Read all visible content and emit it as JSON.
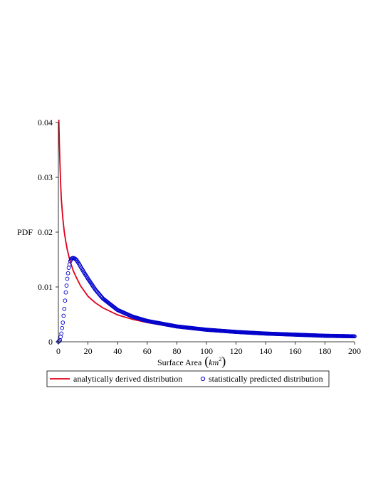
{
  "chart_data": {
    "type": "line",
    "xlabel": "Surface Area",
    "xlabel_unit": "km",
    "xlabel_unit_exponent": "2",
    "ylabel": "PDF",
    "xlim": [
      0,
      200
    ],
    "ylim": [
      0,
      0.04
    ],
    "x_ticks": [
      "0",
      "20",
      "40",
      "60",
      "80",
      "100",
      "120",
      "140",
      "160",
      "180",
      "200"
    ],
    "y_ticks": [
      "0",
      "0.01",
      "0.02",
      "0.03",
      "0.04"
    ],
    "grid": false,
    "legend_position": "bottom",
    "series": [
      {
        "name": "analytically derived distribution",
        "style": "line",
        "color": "#e0001b",
        "x": [
          0.3,
          0.6,
          1,
          1.5,
          2,
          3,
          4,
          5,
          6,
          8,
          10,
          12,
          15,
          20,
          25,
          30,
          40,
          50,
          60,
          80,
          100,
          120,
          140,
          160,
          180,
          200
        ],
        "y": [
          0.0405,
          0.037,
          0.033,
          0.029,
          0.026,
          0.0225,
          0.02,
          0.0183,
          0.0168,
          0.0146,
          0.013,
          0.0118,
          0.0102,
          0.0083,
          0.0071,
          0.0062,
          0.0049,
          0.0041,
          0.0035,
          0.0026,
          0.0021,
          0.0017,
          0.0014,
          0.0012,
          0.0011,
          0.001
        ]
      },
      {
        "name": "statistically predicted distribution",
        "style": "markers",
        "color": "#0000cc",
        "x": [
          0,
          1,
          2,
          3,
          4,
          5,
          6,
          7,
          8,
          9,
          10,
          11,
          12,
          13,
          14,
          15,
          17,
          20,
          25,
          30,
          40,
          50,
          60,
          80,
          100,
          120,
          140,
          160,
          180,
          200
        ],
        "y": [
          0,
          0.0003,
          0.0015,
          0.0035,
          0.006,
          0.009,
          0.0115,
          0.0135,
          0.0147,
          0.0152,
          0.0153,
          0.0152,
          0.015,
          0.0146,
          0.0142,
          0.0137,
          0.0128,
          0.0115,
          0.0095,
          0.0079,
          0.0058,
          0.0046,
          0.0038,
          0.0028,
          0.0022,
          0.0018,
          0.0015,
          0.0013,
          0.0011,
          0.001
        ]
      }
    ]
  }
}
